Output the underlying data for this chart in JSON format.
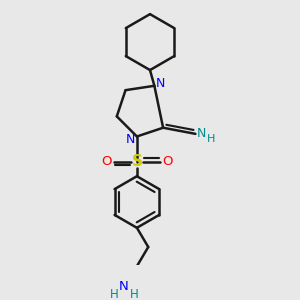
{
  "background_color": "#e8e8e8",
  "bond_color": "#1a1a1a",
  "nitrogen_color": "#0000ff",
  "sulfur_color": "#cccc00",
  "oxygen_color": "#ff0000",
  "teal_color": "#008b8b",
  "line_width": 1.8,
  "figsize": [
    3.0,
    3.0
  ],
  "dpi": 100,
  "xlim": [
    0.4,
    2.6
  ],
  "ylim": [
    0.0,
    3.0
  ]
}
